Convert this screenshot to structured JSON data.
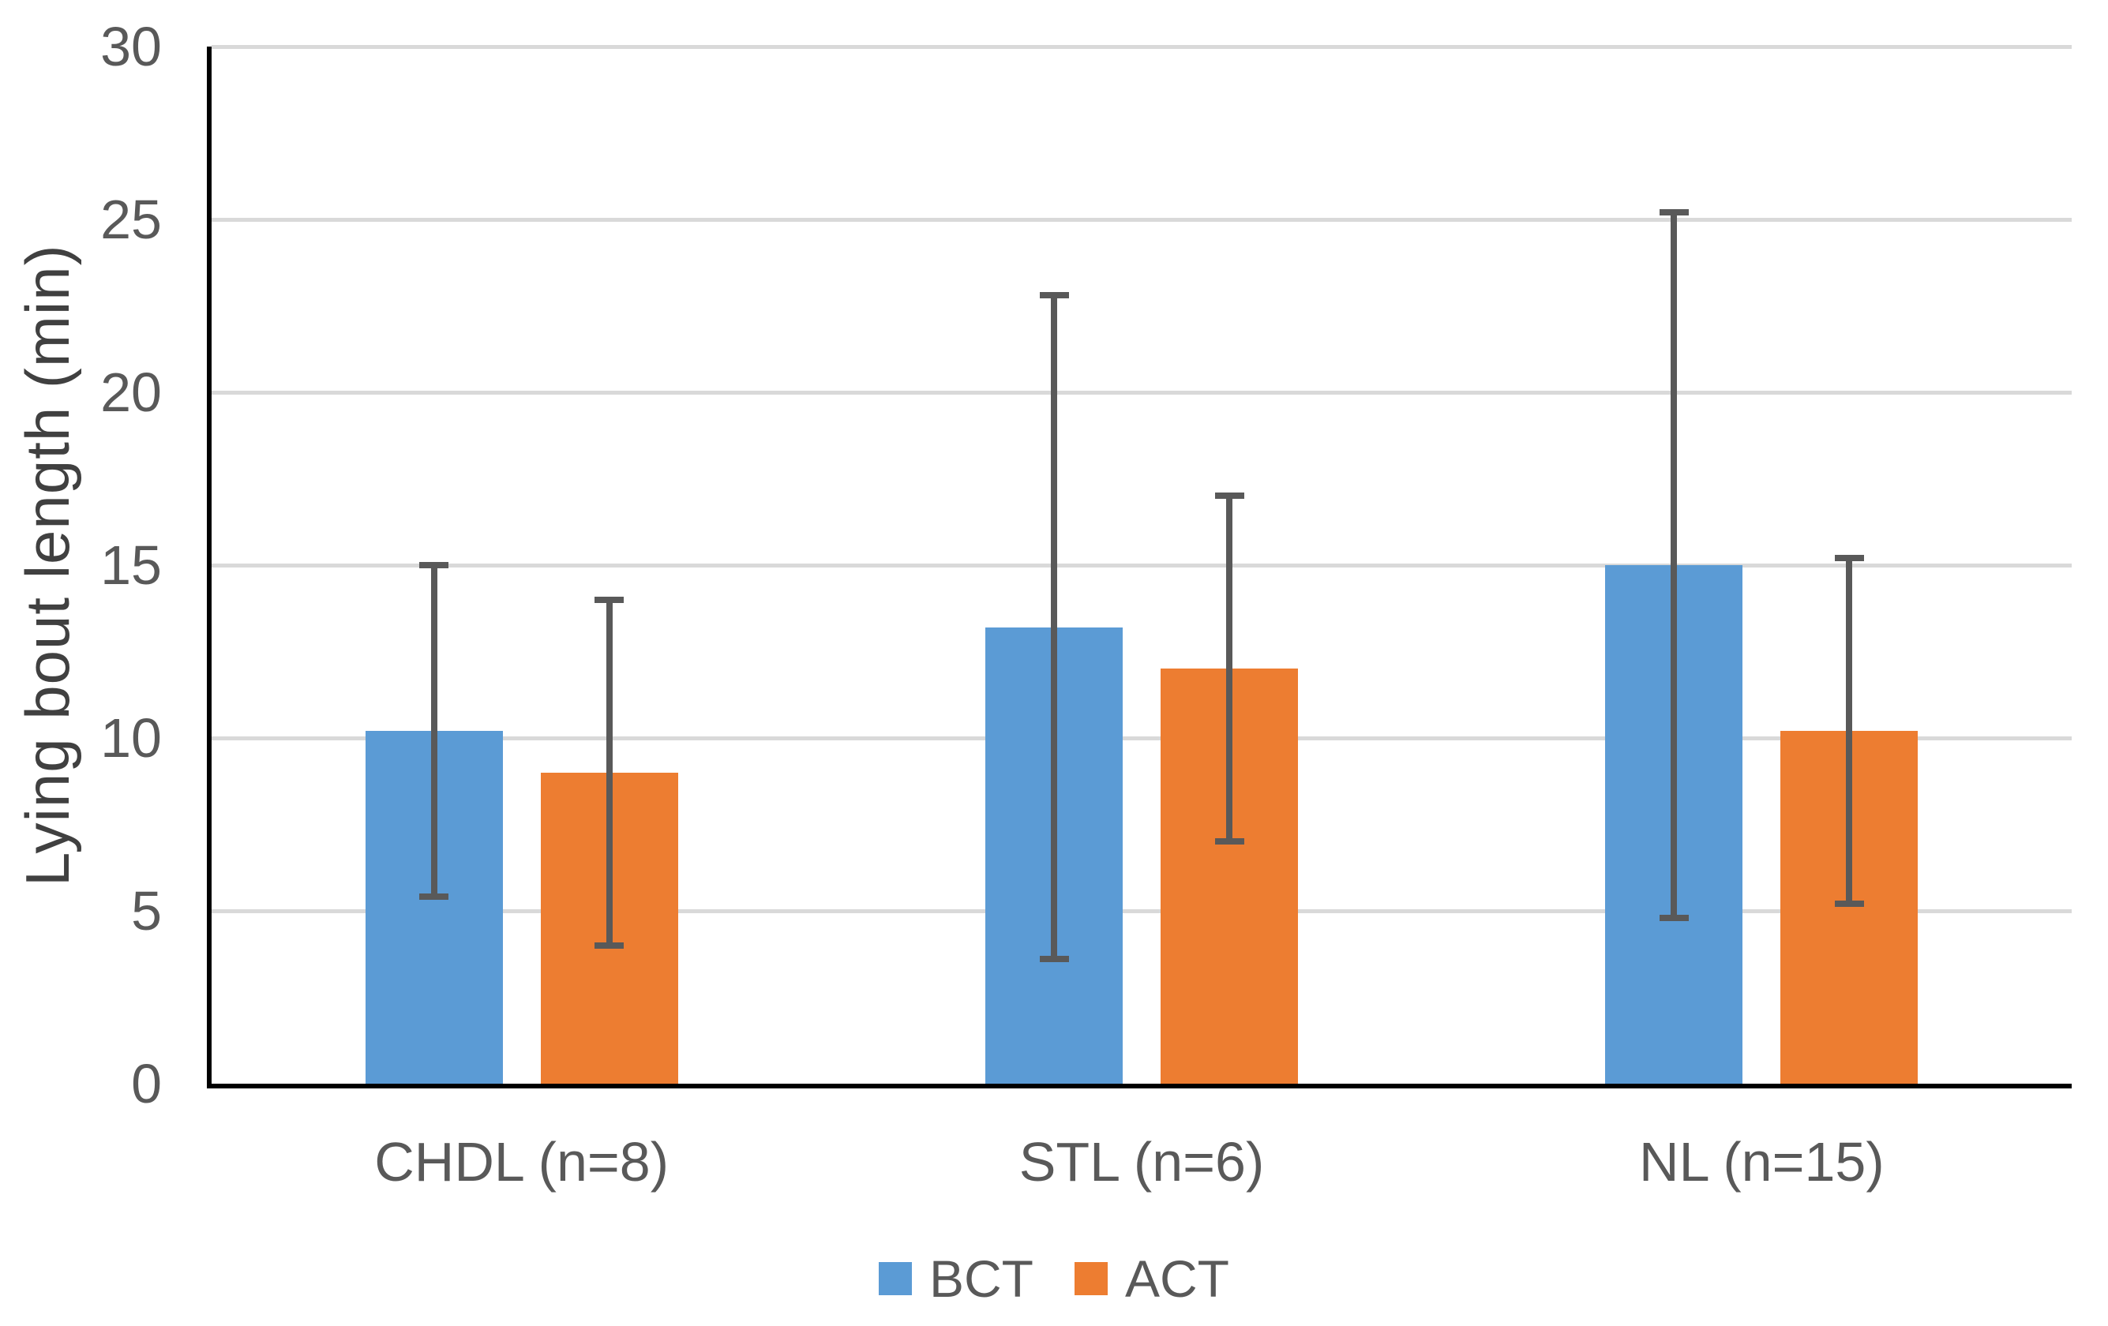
{
  "chart_data": {
    "type": "bar",
    "title": "",
    "ylabel": "Lying bout length (min)",
    "xlabel": "",
    "ylim": [
      0,
      30
    ],
    "yticks": [
      0,
      5,
      10,
      15,
      20,
      25,
      30
    ],
    "grid": true,
    "legend_position": "bottom",
    "categories": [
      "CHDL (n=8)",
      "STL (n=6)",
      "NL (n=15)"
    ],
    "series": [
      {
        "name": "BCT",
        "color": "#5B9BD5",
        "values": [
          10.2,
          13.2,
          15.0
        ],
        "error_plus": [
          4.8,
          9.6,
          10.2
        ],
        "error_minus": [
          4.8,
          9.6,
          10.2
        ]
      },
      {
        "name": "ACT",
        "color": "#ED7D31",
        "values": [
          9.0,
          12.0,
          10.2
        ],
        "error_plus": [
          5.0,
          5.0,
          5.0
        ],
        "error_minus": [
          5.0,
          5.0,
          5.0
        ]
      }
    ],
    "colors": {
      "gridline": "#D9D9D9",
      "axis_line": "#000000",
      "error_bar": "#595959",
      "tick_label": "#595959",
      "category_label": "#595959",
      "axis_title": "#404040",
      "legend_text": "#595959",
      "background": "#FFFFFF"
    }
  }
}
